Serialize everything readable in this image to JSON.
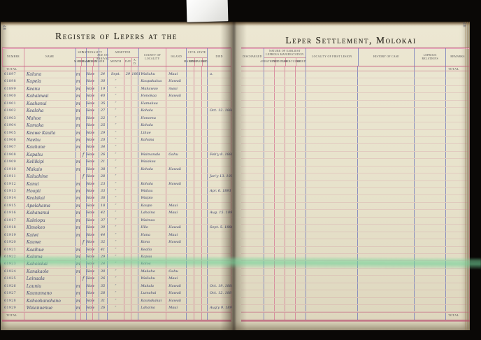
{
  "photo": {
    "page_number_left": "48",
    "page_number_right": "48"
  },
  "colors": {
    "rule_pink": "#d67c96",
    "rule_blue": "#7a80bc",
    "accent_red": "#bc5277",
    "ink": "#5b5e7e",
    "page_cream": "#e7e2cb",
    "green_stripe": "#70d298"
  },
  "left_page": {
    "title": "Register of Lepers at the",
    "header": {
      "number": "Number",
      "name": "Name",
      "sex": {
        "label": "Sex",
        "male": "Male",
        "female": "Female"
      },
      "nationality": {
        "label": "Nationality",
        "hawaiian": "Hawaiian",
        "foreigner": "Foreigner"
      },
      "age": "Age on Arrival",
      "admitted": {
        "label": "Admitted",
        "month": "Month",
        "day": "Day",
        "ad": "A. D."
      },
      "locality": "County of Locality",
      "island": "Island",
      "civil_state": {
        "label": "Civil State",
        "married": "Married",
        "unmarried": "Unmarried",
        "widowed": "Wid."
      },
      "died": "Died"
    },
    "total_label_top": "Total",
    "total_label_bottom": "Total",
    "rows": [
      {
        "n": "61897",
        "nm": "Kaluna",
        "sm": "m",
        "sf": "",
        "nh": "Haw",
        "nf": "",
        "ag": "24",
        "am": "Sept.",
        "ad": "29",
        "ay": "1891",
        "lc": "Wailuku",
        "il": "Maui",
        "dd": "a."
      },
      {
        "n": "61898",
        "nm": "Kapela",
        "sm": "m",
        "sf": "",
        "nh": "Haw",
        "nf": "",
        "ag": "30",
        "am": "″",
        "ad": "",
        "ay": "",
        "lc": "Kaupakalua",
        "il": "Hawaii",
        "dd": ""
      },
      {
        "n": "61899",
        "nm": "Keanu",
        "sm": "m",
        "sf": "",
        "nh": "Haw",
        "nf": "",
        "ag": "19",
        "am": "″",
        "ad": "",
        "ay": "",
        "lc": "Makawao",
        "il": "maui",
        "dd": ""
      },
      {
        "n": "61900",
        "nm": "Kahalewai",
        "sm": "m",
        "sf": "",
        "nh": "Haw",
        "nf": "",
        "ag": "40",
        "am": "″",
        "ad": "",
        "ay": "",
        "lc": "Honokaa",
        "il": "Hawaii",
        "dd": ""
      },
      {
        "n": "61901",
        "nm": "Kaahanui",
        "sm": "m",
        "sf": "",
        "nh": "Haw",
        "nf": "",
        "ag": "35",
        "am": "″",
        "ad": "",
        "ay": "",
        "lc": "Hamakua",
        "il": "",
        "dd": ""
      },
      {
        "n": "61902",
        "nm": "Kealoha",
        "sm": "m",
        "sf": "",
        "nh": "Haw",
        "nf": "",
        "ag": "27",
        "am": "″",
        "ad": "",
        "ay": "",
        "lc": "Kohala",
        "il": "",
        "dd": "Oct. 12. 1886"
      },
      {
        "n": "61903",
        "nm": "Mahoe",
        "sm": "m",
        "sf": "",
        "nh": "Haw",
        "nf": "",
        "ag": "22",
        "am": "″",
        "ad": "",
        "ay": "",
        "lc": "Honomu",
        "il": "",
        "dd": ""
      },
      {
        "n": "61904",
        "nm": "Kamaka",
        "sm": "m",
        "sf": "",
        "nh": "Haw",
        "nf": "",
        "ag": "25",
        "am": "″",
        "ad": "",
        "ay": "",
        "lc": "Kohala",
        "il": "",
        "dd": ""
      },
      {
        "n": "61905",
        "nm": "Keawe Kauila",
        "sm": "m",
        "sf": "",
        "nh": "Haw",
        "nf": "",
        "ag": "29",
        "am": "″",
        "ad": "",
        "ay": "",
        "lc": "Lihue",
        "il": "",
        "dd": ""
      },
      {
        "n": "61906",
        "nm": "Naehu",
        "sm": "m",
        "sf": "",
        "nh": "Haw",
        "nf": "",
        "ag": "20",
        "am": "″",
        "ad": "",
        "ay": "",
        "lc": "Kahana",
        "il": "",
        "dd": ""
      },
      {
        "n": "61907",
        "nm": "Kauhane",
        "sm": "m",
        "sf": "",
        "nh": "Haw",
        "nf": "",
        "ag": "34",
        "am": "″",
        "ad": "",
        "ay": "",
        "lc": "",
        "il": "",
        "dd": ""
      },
      {
        "n": "61908",
        "nm": "Kapahu",
        "sm": "",
        "sf": "f",
        "nh": "Haw",
        "nf": "",
        "ag": "26",
        "am": "″",
        "ad": "",
        "ay": "",
        "lc": "Waimanalo",
        "il": "Oahu",
        "dd": "Feb'y 8. 1888"
      },
      {
        "n": "61909",
        "nm": "Keliikipi",
        "sm": "m",
        "sf": "",
        "nh": "Haw",
        "nf": "",
        "ag": "21",
        "am": "″",
        "ad": "",
        "ay": "",
        "lc": "Waiakea",
        "il": "",
        "dd": ""
      },
      {
        "n": "61910",
        "nm": "Makaio",
        "sm": "m",
        "sf": "",
        "nh": "Haw",
        "nf": "",
        "ag": "38",
        "am": "″",
        "ad": "",
        "ay": "",
        "lc": "Kohala",
        "il": "Hawaii",
        "dd": ""
      },
      {
        "n": "61911",
        "nm": "Kaluahine",
        "sm": "",
        "sf": "f",
        "nh": "Haw",
        "nf": "",
        "ag": "28",
        "am": "″",
        "ad": "",
        "ay": "",
        "lc": "",
        "il": "",
        "dd": "Jan'y 13. 1891"
      },
      {
        "n": "61912",
        "nm": "Kanui",
        "sm": "m",
        "sf": "",
        "nh": "Haw",
        "nf": "",
        "ag": "23",
        "am": "″",
        "ad": "",
        "ay": "",
        "lc": "Kohala",
        "il": "Hawaii",
        "dd": ""
      },
      {
        "n": "61913",
        "nm": "Hoopii",
        "sm": "m",
        "sf": "",
        "nh": "Haw",
        "nf": "",
        "ag": "33",
        "am": "″",
        "ad": "",
        "ay": "",
        "lc": "Wailau",
        "il": "",
        "dd": "Apr. 6. 1891"
      },
      {
        "n": "61914",
        "nm": "Kealakai",
        "sm": "m",
        "sf": "",
        "nh": "Haw",
        "nf": "",
        "ag": "36",
        "am": "″",
        "ad": "",
        "ay": "",
        "lc": "Waipio",
        "il": "",
        "dd": ""
      },
      {
        "n": "61915",
        "nm": "Apelahama",
        "sm": "m",
        "sf": "",
        "nh": "Haw",
        "nf": "",
        "ag": "18",
        "am": "″",
        "ad": "",
        "ay": "",
        "lc": "Kaupo",
        "il": "Maui",
        "dd": ""
      },
      {
        "n": "61916",
        "nm": "Kahananui",
        "sm": "m",
        "sf": "",
        "nh": "Haw",
        "nf": "",
        "ag": "42",
        "am": "″",
        "ad": "",
        "ay": "",
        "lc": "Lahaina",
        "il": "Maui",
        "dd": "Aug. 15. 1891"
      },
      {
        "n": "61917",
        "nm": "Kaleiopu",
        "sm": "m",
        "sf": "",
        "nh": "Haw",
        "nf": "",
        "ag": "37",
        "am": "″",
        "ad": "",
        "ay": "",
        "lc": "Waimea",
        "il": "",
        "dd": ""
      },
      {
        "n": "61918",
        "nm": "Kimokeo",
        "sm": "m",
        "sf": "",
        "nh": "Haw",
        "nf": "",
        "ag": "39",
        "am": "″",
        "ad": "",
        "ay": "",
        "lc": "Hilo",
        "il": "Hawaii",
        "dd": "Sept. 5. 1886"
      },
      {
        "n": "61919",
        "nm": "Kaiwi",
        "sm": "m",
        "sf": "",
        "nh": "Haw",
        "nf": "",
        "ag": "44",
        "am": "″",
        "ad": "",
        "ay": "",
        "lc": "Hana",
        "il": "Maui",
        "dd": ""
      },
      {
        "n": "61920",
        "nm": "Kauwe",
        "sm": "",
        "sf": "f",
        "nh": "Haw",
        "nf": "",
        "ag": "32",
        "am": "″",
        "ad": "",
        "ay": "",
        "lc": "Kona",
        "il": "Hawaii",
        "dd": ""
      },
      {
        "n": "61921",
        "nm": "Kaaihue",
        "sm": "m",
        "sf": "",
        "nh": "Haw",
        "nf": "",
        "ag": "41",
        "am": "″",
        "ad": "",
        "ay": "",
        "lc": "Kealia",
        "il": "",
        "dd": ""
      },
      {
        "n": "61922",
        "nm": "Kalama",
        "sm": "m",
        "sf": "",
        "nh": "Haw",
        "nf": "",
        "ag": "29",
        "am": "″",
        "ad": "",
        "ay": "",
        "lc": "Kapaa",
        "il": "",
        "dd": ""
      },
      {
        "n": "61923",
        "nm": "Kaholokai",
        "sm": "m",
        "sf": "",
        "nh": "Haw",
        "nf": "",
        "ag": "24",
        "am": "″",
        "ad": "",
        "ay": "",
        "lc": "Koloa",
        "il": "",
        "dd": ""
      },
      {
        "n": "61924",
        "nm": "Kanakaole",
        "sm": "m",
        "sf": "",
        "nh": "Haw",
        "nf": "",
        "ag": "30",
        "am": "″",
        "ad": "",
        "ay": "",
        "lc": "Makaha",
        "il": "Oahu",
        "dd": ""
      },
      {
        "n": "61925",
        "nm": "Leinaala",
        "sm": "",
        "sf": "f",
        "nh": "Haw",
        "nf": "",
        "ag": "26",
        "am": "″",
        "ad": "",
        "ay": "",
        "lc": "Wailuku",
        "il": "Maui",
        "dd": ""
      },
      {
        "n": "61926",
        "nm": "Launiu",
        "sm": "m",
        "sf": "",
        "nh": "Haw",
        "nf": "",
        "ag": "35",
        "am": "″",
        "ad": "",
        "ay": "",
        "lc": "Makala",
        "il": "Hawaii",
        "dd": "Oct. 19. 1889"
      },
      {
        "n": "61927",
        "nm": "Kaunamano",
        "sm": "m",
        "sf": "",
        "nh": "Haw",
        "nf": "",
        "ag": "28",
        "am": "″",
        "ad": "",
        "ay": "",
        "lc": "Lumahai",
        "il": "Hawaii",
        "dd": "Oct. 12. 1887"
      },
      {
        "n": "61928",
        "nm": "Kahoohanohano",
        "sm": "m",
        "sf": "",
        "nh": "Haw",
        "nf": "",
        "ag": "31",
        "am": "″",
        "ad": "",
        "ay": "",
        "lc": "Kaunakakai",
        "il": "Hawaii",
        "dd": ""
      },
      {
        "n": "61929",
        "nm": "Waianuenue",
        "sm": "m",
        "sf": "",
        "nh": "Haw",
        "nf": "",
        "ag": "26",
        "am": "″",
        "ad": "",
        "ay": "",
        "lc": "Lahaina",
        "il": "Maui",
        "dd": "Aug'y 9. 1891"
      }
    ]
  },
  "right_page": {
    "title": "Leper Settlement, Molokai",
    "header": {
      "discharged": "Discharged",
      "nature": {
        "label": "Nature of Earliest Leprous Manifestation",
        "c1": "Anesthetic",
        "c2": "Nodular",
        "c3": "Tubercular",
        "c4": "Mixed"
      },
      "first_lesion": "Locality of First Lesion",
      "history": "History of Case",
      "relations": "Leprous Relations",
      "remarks": "Remarks"
    },
    "total_label_top": "Total",
    "total_label_bottom": "Total"
  }
}
